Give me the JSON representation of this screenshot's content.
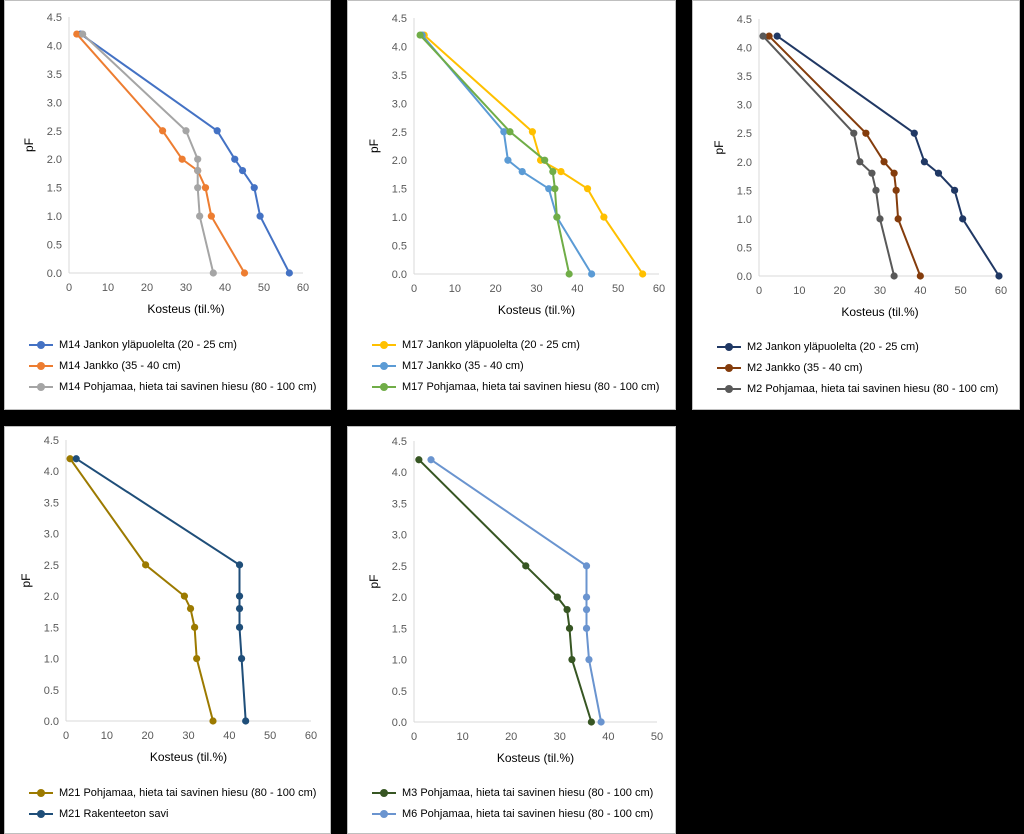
{
  "chart_data": [
    {
      "type": "line",
      "xlabel": "Kosteus (til.%)",
      "ylabel": "pF",
      "xlim": [
        0,
        60
      ],
      "ylim": [
        0,
        4.5
      ],
      "xticks": [
        "0",
        "10",
        "20",
        "30",
        "40",
        "50",
        "60"
      ],
      "yticks": [
        "0.0",
        "0.5",
        "1.0",
        "1.5",
        "2.0",
        "2.5",
        "3.0",
        "3.5",
        "4.0",
        "4.5"
      ],
      "grid": false,
      "legend_position": "bottom",
      "series": [
        {
          "name": "M14 Jankon yläpuolelta (20 - 25 cm)",
          "color": "#4472c4",
          "points": [
            [
              56.5,
              0.0
            ],
            [
              49.0,
              1.0
            ],
            [
              47.5,
              1.5
            ],
            [
              44.5,
              1.8
            ],
            [
              42.5,
              2.0
            ],
            [
              38.0,
              2.5
            ],
            [
              3.0,
              4.2
            ]
          ]
        },
        {
          "name": "M14 Jankko (35 - 40 cm)",
          "color": "#ed7d31",
          "points": [
            [
              45.0,
              0.0
            ],
            [
              36.5,
              1.0
            ],
            [
              35.0,
              1.5
            ],
            [
              33.0,
              1.8
            ],
            [
              29.0,
              2.0
            ],
            [
              24.0,
              2.5
            ],
            [
              2.0,
              4.2
            ]
          ]
        },
        {
          "name": "M14 Pohjamaa, hieta tai savinen hiesu (80 - 100 cm)",
          "color": "#a5a5a5",
          "points": [
            [
              37.0,
              0.0
            ],
            [
              33.5,
              1.0
            ],
            [
              33.0,
              1.5
            ],
            [
              33.0,
              1.8
            ],
            [
              33.0,
              2.0
            ],
            [
              30.0,
              2.5
            ],
            [
              3.5,
              4.2
            ]
          ]
        }
      ]
    },
    {
      "type": "line",
      "xlabel": "Kosteus (til.%)",
      "ylabel": "pF",
      "xlim": [
        0,
        60
      ],
      "ylim": [
        0,
        4.5
      ],
      "xticks": [
        "0",
        "10",
        "20",
        "30",
        "40",
        "50",
        "60"
      ],
      "yticks": [
        "0.0",
        "0.5",
        "1.0",
        "1.5",
        "2.0",
        "2.5",
        "3.0",
        "3.5",
        "4.0",
        "4.5"
      ],
      "grid": false,
      "legend_position": "bottom",
      "series": [
        {
          "name": "M17 Jankon yläpuolelta (20 - 25 cm)",
          "color": "#ffc000",
          "points": [
            [
              56.0,
              0.0
            ],
            [
              46.5,
              1.0
            ],
            [
              42.5,
              1.5
            ],
            [
              36.0,
              1.8
            ],
            [
              31.0,
              2.0
            ],
            [
              29.0,
              2.5
            ],
            [
              2.5,
              4.2
            ]
          ]
        },
        {
          "name": "M17 Jankko (35 - 40 cm)",
          "color": "#5b9bd5",
          "points": [
            [
              43.5,
              0.0
            ],
            [
              35.0,
              1.0
            ],
            [
              33.0,
              1.5
            ],
            [
              26.5,
              1.8
            ],
            [
              23.0,
              2.0
            ],
            [
              22.0,
              2.5
            ],
            [
              2.0,
              4.2
            ]
          ]
        },
        {
          "name": "M17 Pohjamaa, hieta tai savinen hiesu (80 - 100 cm)",
          "color": "#70ad47",
          "points": [
            [
              38.0,
              0.0
            ],
            [
              35.0,
              1.0
            ],
            [
              34.5,
              1.5
            ],
            [
              34.0,
              1.8
            ],
            [
              32.0,
              2.0
            ],
            [
              23.5,
              2.5
            ],
            [
              1.5,
              4.2
            ]
          ]
        }
      ]
    },
    {
      "type": "line",
      "xlabel": "Kosteus (til.%)",
      "ylabel": "pF",
      "xlim": [
        0,
        60
      ],
      "ylim": [
        0,
        4.5
      ],
      "xticks": [
        "0",
        "10",
        "20",
        "30",
        "40",
        "50",
        "60"
      ],
      "yticks": [
        "0.0",
        "0.5",
        "1.0",
        "1.5",
        "2.0",
        "2.5",
        "3.0",
        "3.5",
        "4.0",
        "4.5"
      ],
      "grid": false,
      "legend_position": "bottom",
      "series": [
        {
          "name": "M2 Jankon yläpuolelta (20 - 25 cm)",
          "color": "#203864",
          "points": [
            [
              59.5,
              0.0
            ],
            [
              50.5,
              1.0
            ],
            [
              48.5,
              1.5
            ],
            [
              44.5,
              1.8
            ],
            [
              41.0,
              2.0
            ],
            [
              38.5,
              2.5
            ],
            [
              4.5,
              4.2
            ]
          ]
        },
        {
          "name": "M2 Jankko (35 - 40 cm)",
          "color": "#843c0c",
          "points": [
            [
              40.0,
              0.0
            ],
            [
              34.5,
              1.0
            ],
            [
              34.0,
              1.5
            ],
            [
              33.5,
              1.8
            ],
            [
              31.0,
              2.0
            ],
            [
              26.5,
              2.5
            ],
            [
              2.5,
              4.2
            ]
          ]
        },
        {
          "name": "M2 Pohjamaa, hieta tai savinen hiesu (80 - 100 cm)",
          "color": "#595959",
          "points": [
            [
              33.5,
              0.0
            ],
            [
              30.0,
              1.0
            ],
            [
              29.0,
              1.5
            ],
            [
              28.0,
              1.8
            ],
            [
              25.0,
              2.0
            ],
            [
              23.5,
              2.5
            ],
            [
              1.0,
              4.2
            ]
          ]
        }
      ]
    },
    {
      "type": "line",
      "xlabel": "Kosteus (til.%)",
      "ylabel": "pF",
      "xlim": [
        0,
        60
      ],
      "ylim": [
        0,
        4.5
      ],
      "xticks": [
        "0",
        "10",
        "20",
        "30",
        "40",
        "50",
        "60"
      ],
      "yticks": [
        "0.0",
        "0.5",
        "1.0",
        "1.5",
        "2.0",
        "2.5",
        "3.0",
        "3.5",
        "4.0",
        "4.5"
      ],
      "grid": false,
      "legend_position": "bottom",
      "series": [
        {
          "name": "M21 Pohjamaa, hieta tai savinen hiesu (80 - 100 cm)",
          "color": "#9c7a00",
          "points": [
            [
              36.0,
              0.0
            ],
            [
              32.0,
              1.0
            ],
            [
              31.5,
              1.5
            ],
            [
              30.5,
              1.8
            ],
            [
              29.0,
              2.0
            ],
            [
              19.5,
              2.5
            ],
            [
              1.0,
              4.2
            ]
          ]
        },
        {
          "name": "M21 Rakenteeton savi",
          "color": "#1f4e79",
          "points": [
            [
              44.0,
              0.0
            ],
            [
              43.0,
              1.0
            ],
            [
              42.5,
              1.5
            ],
            [
              42.5,
              1.8
            ],
            [
              42.5,
              2.0
            ],
            [
              42.5,
              2.5
            ],
            [
              2.5,
              4.2
            ]
          ]
        }
      ]
    },
    {
      "type": "line",
      "xlabel": "Kosteus (til.%)",
      "ylabel": "pF",
      "xlim": [
        0,
        50
      ],
      "ylim": [
        0,
        4.5
      ],
      "xticks": [
        "0",
        "10",
        "20",
        "30",
        "40",
        "50"
      ],
      "yticks": [
        "0.0",
        "0.5",
        "1.0",
        "1.5",
        "2.0",
        "2.5",
        "3.0",
        "3.5",
        "4.0",
        "4.5"
      ],
      "grid": false,
      "legend_position": "bottom",
      "series": [
        {
          "name": "M3 Pohjamaa, hieta tai savinen hiesu (80 - 100 cm)",
          "color": "#375623",
          "points": [
            [
              36.5,
              0.0
            ],
            [
              32.5,
              1.0
            ],
            [
              32.0,
              1.5
            ],
            [
              31.5,
              1.8
            ],
            [
              29.5,
              2.0
            ],
            [
              23.0,
              2.5
            ],
            [
              1.0,
              4.2
            ]
          ]
        },
        {
          "name": "M6 Pohjamaa, hieta tai savinen hiesu (80 - 100 cm)",
          "color": "#6a94cf",
          "points": [
            [
              38.5,
              0.0
            ],
            [
              36.0,
              1.0
            ],
            [
              35.5,
              1.5
            ],
            [
              35.5,
              1.8
            ],
            [
              35.5,
              2.0
            ],
            [
              35.5,
              2.5
            ],
            [
              3.5,
              4.2
            ]
          ]
        }
      ]
    }
  ]
}
